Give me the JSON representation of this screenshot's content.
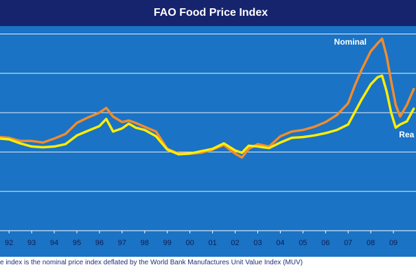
{
  "chart_data": {
    "type": "line",
    "title": "FAO Food Price Index",
    "xlabel": "",
    "ylabel": "",
    "grid": true,
    "ylim": [
      0,
      260
    ],
    "gridlines": [
      50,
      100,
      150,
      200,
      250
    ],
    "xlim": [
      1991.6,
      2010.0
    ],
    "categories": [
      "92",
      "93",
      "94",
      "95",
      "96",
      "97",
      "98",
      "99",
      "00",
      "01",
      "02",
      "03",
      "04",
      "05",
      "06",
      "07",
      "08",
      "09"
    ],
    "category_years": [
      1992,
      1993,
      1994,
      1995,
      1996,
      1997,
      1998,
      1999,
      2000,
      2001,
      2002,
      2003,
      2004,
      2005,
      2006,
      2007,
      2008,
      2009
    ],
    "series": [
      {
        "name": "Nominal",
        "label": "Nominal",
        "color": "#f08c2e",
        "x": [
          1991.6,
          1992.0,
          1992.5,
          1993.0,
          1993.5,
          1994.0,
          1994.5,
          1995.0,
          1995.5,
          1996.0,
          1996.3,
          1996.6,
          1997.0,
          1997.3,
          1997.6,
          1998.0,
          1998.5,
          1999.0,
          1999.5,
          2000.0,
          2000.5,
          2001.0,
          2001.5,
          2002.0,
          2002.3,
          2002.6,
          2003.0,
          2003.5,
          2004.0,
          2004.5,
          2005.0,
          2005.5,
          2006.0,
          2006.5,
          2007.0,
          2007.3,
          2007.6,
          2008.0,
          2008.3,
          2008.5,
          2008.7,
          2008.9,
          2009.1,
          2009.3,
          2009.6,
          2009.9
        ],
        "values": [
          119,
          118,
          114,
          114,
          112,
          117,
          123,
          137,
          144,
          150,
          156,
          145,
          138,
          140,
          137,
          132,
          126,
          104,
          98,
          98,
          99,
          103,
          109,
          98,
          93,
          104,
          110,
          107,
          120,
          126,
          128,
          132,
          138,
          147,
          162,
          185,
          205,
          228,
          238,
          244,
          222,
          190,
          160,
          145,
          160,
          180
        ]
      },
      {
        "name": "Real",
        "label": "Rea",
        "color": "#ffee00",
        "x": [
          1991.6,
          1992.0,
          1992.5,
          1993.0,
          1993.5,
          1994.0,
          1994.5,
          1995.0,
          1995.5,
          1996.0,
          1996.3,
          1996.6,
          1997.0,
          1997.3,
          1997.6,
          1998.0,
          1998.5,
          1999.0,
          1999.5,
          2000.0,
          2000.5,
          2001.0,
          2001.5,
          2002.0,
          2002.3,
          2002.6,
          2003.0,
          2003.5,
          2004.0,
          2004.5,
          2005.0,
          2005.5,
          2006.0,
          2006.5,
          2007.0,
          2007.3,
          2007.6,
          2008.0,
          2008.3,
          2008.5,
          2008.7,
          2008.9,
          2009.1,
          2009.3,
          2009.6,
          2009.9
        ],
        "values": [
          117,
          116,
          111,
          107,
          106,
          107,
          110,
          121,
          127,
          133,
          142,
          126,
          130,
          136,
          131,
          128,
          120,
          103,
          97,
          98,
          101,
          104,
          111,
          102,
          99,
          108,
          107,
          105,
          112,
          118,
          119,
          121,
          124,
          128,
          135,
          151,
          167,
          186,
          195,
          197,
          177,
          150,
          131,
          135,
          139,
          155
        ]
      }
    ]
  },
  "footnote": "e index is the nominal price index deflated by the World Bank Manufactures Unit Value Index (MUV)"
}
